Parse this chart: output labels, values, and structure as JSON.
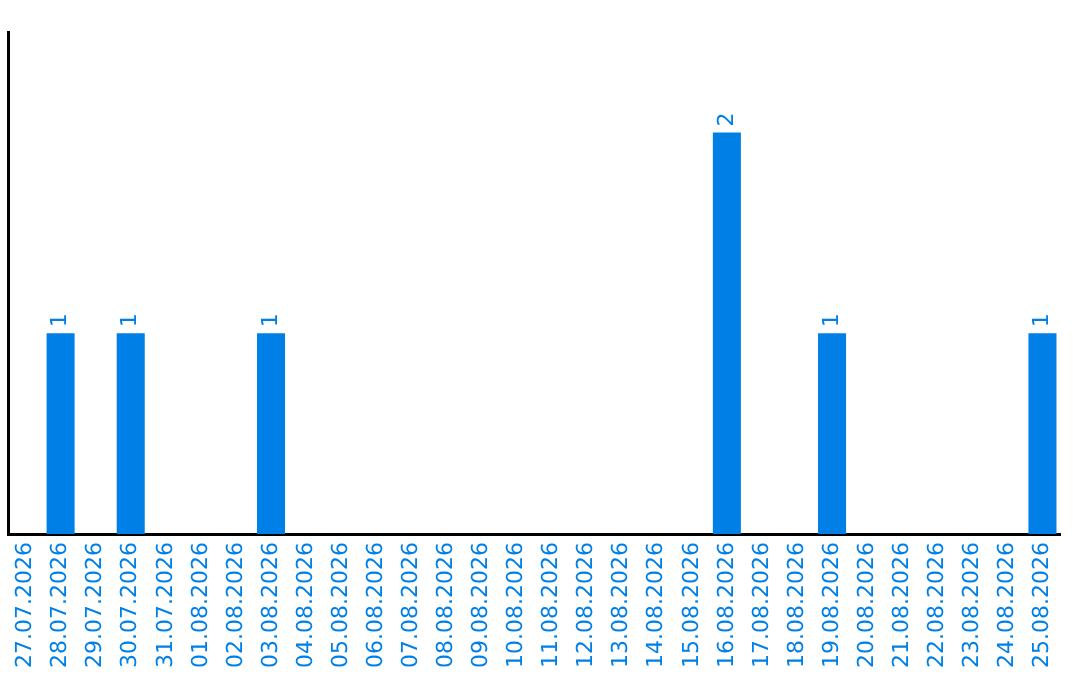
{
  "chart_data": {
    "type": "bar",
    "categories": [
      "27.07.2026",
      "28.07.2026",
      "29.07.2026",
      "30.07.2026",
      "31.07.2026",
      "01.08.2026",
      "02.08.2026",
      "03.08.2026",
      "04.08.2026",
      "05.08.2026",
      "06.08.2026",
      "07.08.2026",
      "08.08.2026",
      "09.08.2026",
      "10.08.2026",
      "11.08.2026",
      "12.08.2026",
      "13.08.2026",
      "14.08.2026",
      "15.08.2026",
      "16.08.2026",
      "17.08.2026",
      "18.08.2026",
      "19.08.2026",
      "20.08.2026",
      "21.08.2026",
      "22.08.2026",
      "23.08.2026",
      "24.08.2026",
      "25.08.2026"
    ],
    "values": [
      0,
      1,
      0,
      1,
      0,
      0,
      0,
      1,
      0,
      0,
      0,
      0,
      0,
      0,
      0,
      0,
      0,
      0,
      0,
      0,
      2,
      0,
      0,
      1,
      0,
      0,
      0,
      0,
      0,
      1
    ],
    "value_labels": [
      null,
      "1",
      null,
      "1",
      null,
      null,
      null,
      "1",
      null,
      null,
      null,
      null,
      null,
      null,
      null,
      null,
      null,
      null,
      null,
      null,
      "2",
      null,
      null,
      "1",
      null,
      null,
      null,
      null,
      null,
      "1"
    ],
    "color": "#0080e6",
    "grid": false,
    "legend": false,
    "tick_labels": "x"
  }
}
